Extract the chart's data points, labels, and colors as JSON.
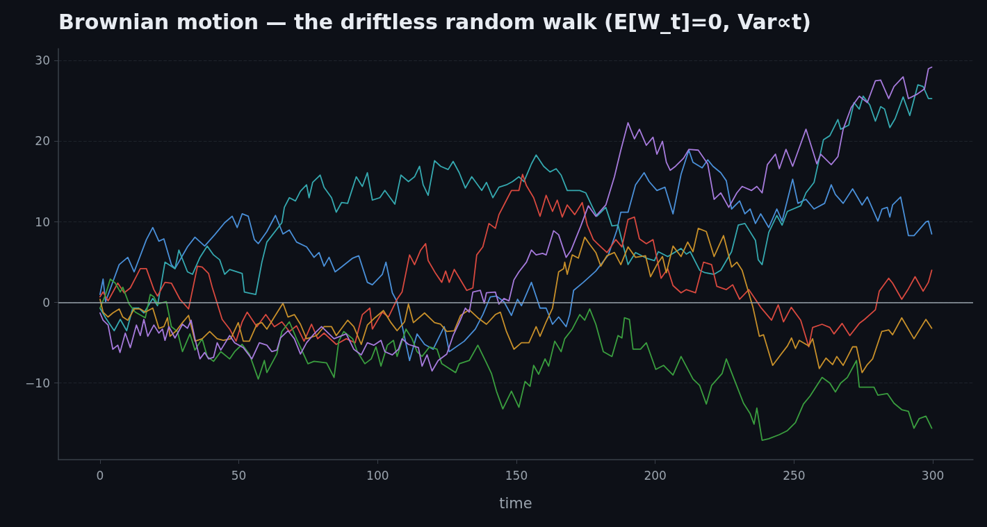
{
  "chart_data": {
    "type": "line",
    "title": "Brownian motion — the driftless random walk (E[W_t]=0, Var∝t)",
    "xlabel": "time",
    "xlim": [
      -15,
      314.5
    ],
    "xticks": [
      0,
      50,
      100,
      150,
      200,
      250,
      300
    ],
    "ylim": [
      -19.5,
      31.5
    ],
    "yticks": [
      {
        "value": -10,
        "label": "−10"
      },
      0,
      10,
      20,
      30
    ],
    "grid": "y",
    "marker": "none",
    "line_style": "solid",
    "ref_lines": [
      {
        "axis": "y",
        "value": 0,
        "label": null,
        "color": "#9aa3ad",
        "line_style": "solid"
      }
    ],
    "series": [
      {
        "color": "#4a90d9",
        "x": [
          0,
          1.1,
          2,
          6.9,
          10,
          12.3,
          16.7,
          19,
          21.2,
          23,
          25.7,
          27,
          31.5,
          34.2,
          37.7,
          41.3,
          44.9,
          47.6,
          49.4,
          51.2,
          53.4,
          55.6,
          57,
          60.1,
          63.2,
          65.9,
          68.2,
          70.8,
          74.4,
          77.1,
          78.9,
          80.7,
          82.5,
          84.7,
          87,
          91,
          93.2,
          96.3,
          98.1,
          101.7,
          103,
          105.3,
          107,
          111.5,
          114.2,
          116.9,
          120,
          124,
          125.8,
          131.2,
          135.2,
          137.9,
          140.6,
          142.8,
          145.5,
          148.2,
          150.4,
          151.8,
          155.4,
          158.5,
          160.7,
          163,
          165.2,
          167.9,
          169.2,
          170.6,
          174.1,
          178.6,
          183.1,
          186.2,
          187.6,
          190.2,
          192.9,
          196,
          197.8,
          200.6,
          203.5,
          206.4,
          209.3,
          212.1,
          213.6,
          216.9,
          218.9,
          220.8,
          223.6,
          225.6,
          227.5,
          230.4,
          232.3,
          234.2,
          236.1,
          238,
          240.9,
          243.8,
          245.7,
          249.5,
          251.4,
          254.3,
          257.2,
          261,
          263.4,
          264.9,
          267.7,
          271.1,
          274.5,
          276.4,
          280.2,
          281.7,
          283.6,
          284.5,
          285.5,
          288.4,
          291.2,
          293.2,
          297.5,
          298.4,
          299.6
        ],
        "values": [
          1,
          2.9,
          0.1,
          4.7,
          5.6,
          3.8,
          7.8,
          9.3,
          7.6,
          7.9,
          4.7,
          4.2,
          6.9,
          8.1,
          7,
          8.4,
          9.9,
          10.7,
          9.3,
          11,
          10.7,
          7.8,
          7.3,
          8.8,
          10.8,
          8.5,
          9,
          7.5,
          6.9,
          5.6,
          6.2,
          4.5,
          5.6,
          3.8,
          4.4,
          5.5,
          5.8,
          2.5,
          2.2,
          3.5,
          5,
          1.2,
          0.1,
          -7.2,
          -3.9,
          -5.2,
          -5.8,
          -3,
          -6.1,
          -4.8,
          -3.3,
          -1.5,
          0.7,
          0.8,
          0.1,
          -1.6,
          0.4,
          -0.4,
          2.5,
          -0.7,
          -0.7,
          -2.7,
          -1.8,
          -3,
          -1.5,
          1.5,
          2.5,
          3.9,
          5.9,
          9,
          11.2,
          11.2,
          14.6,
          16.1,
          15,
          13.9,
          14.3,
          11,
          15.9,
          18.9,
          17.4,
          16.7,
          17.7,
          16.9,
          16.1,
          15.1,
          11.6,
          12.6,
          11,
          11.6,
          9.8,
          11,
          9.3,
          11.6,
          10.1,
          15.3,
          12.3,
          12.8,
          11.6,
          12.3,
          14.6,
          13.4,
          12.3,
          14.1,
          12.1,
          13.1,
          10.1,
          11.6,
          11.8,
          10.6,
          12.1,
          13.1,
          8.3,
          8.3,
          10,
          10.1,
          8.5
        ]
      },
      {
        "color": "#35a9b0",
        "x": [
          0,
          2,
          5.1,
          7.3,
          9.6,
          11.8,
          14,
          15.8,
          19,
          20.7,
          23.4,
          27,
          28.4,
          31.5,
          33.3,
          36,
          38.6,
          40.9,
          43.1,
          44.9,
          46.7,
          51.2,
          52,
          56.1,
          58.3,
          60.1,
          65.5,
          66.4,
          68.2,
          70.4,
          72.2,
          74.4,
          75.3,
          76.6,
          79.3,
          80.7,
          83.4,
          85.1,
          87,
          89.2,
          92.3,
          94.5,
          96.3,
          98.1,
          100.8,
          102.6,
          106.2,
          108.4,
          111.1,
          113.3,
          115.1,
          116.4,
          118.2,
          120.5,
          122.7,
          125.4,
          127.2,
          129.4,
          131.6,
          133.9,
          137.5,
          139.2,
          141.5,
          143.7,
          146.4,
          148.6,
          150.9,
          152.7,
          155.4,
          157.1,
          159.8,
          162.1,
          164.3,
          166.1,
          168.3,
          172.8,
          175,
          177.3,
          179,
          182.2,
          184.4,
          186.6,
          190.2,
          192.9,
          196.8,
          199.7,
          201.1,
          204.5,
          209.3,
          211.2,
          212.6,
          216,
          217.9,
          221.2,
          223.6,
          227.5,
          229.9,
          232.3,
          236.1,
          237.1,
          238.5,
          240.9,
          243.8,
          245.7,
          247.6,
          252.4,
          254.3,
          257.2,
          260.6,
          262.9,
          265.8,
          266.8,
          269.7,
          271.6,
          273.5,
          274.9,
          277.3,
          279.3,
          281.2,
          282.6,
          284.5,
          286.4,
          289.3,
          291.7,
          294.6,
          296.5,
          298.4,
          299.6
        ],
        "values": [
          -0.7,
          -1.9,
          -3.5,
          -2.1,
          -3.5,
          -0.7,
          -0.7,
          -1.3,
          0.5,
          -0.4,
          5,
          4.2,
          6.5,
          3.8,
          3.5,
          5.6,
          7,
          5.9,
          5.3,
          3.5,
          4.1,
          3.6,
          1.3,
          1,
          5,
          7.5,
          9.9,
          11.8,
          13,
          12.6,
          13.8,
          14.6,
          13,
          14.9,
          15.8,
          14.3,
          13,
          11.2,
          12.4,
          12.3,
          15.6,
          14.4,
          16.1,
          12.7,
          13,
          13.9,
          12.2,
          15.8,
          15,
          15.6,
          16.9,
          14.6,
          13.3,
          17.6,
          16.9,
          16.5,
          17.5,
          16.1,
          14.2,
          15.6,
          13.9,
          14.9,
          13,
          14.3,
          14.6,
          15,
          15.6,
          15,
          17.2,
          18.3,
          16.9,
          16.2,
          16.6,
          15.8,
          13.9,
          13.9,
          13.6,
          11.9,
          10.7,
          11.8,
          9.5,
          9.6,
          4.7,
          6.2,
          5.5,
          5.2,
          6.3,
          5.7,
          6.7,
          6,
          6.3,
          4,
          3.7,
          3.5,
          4,
          6.3,
          9.6,
          9.8,
          7.7,
          5.3,
          4.7,
          8.7,
          10.8,
          9.6,
          11.3,
          12,
          13.6,
          14.9,
          20.2,
          20.7,
          22.7,
          21.5,
          22,
          24.8,
          24,
          25.6,
          24.5,
          22.5,
          24.3,
          24,
          21.7,
          22.8,
          25.5,
          23.2,
          27,
          26.8,
          25.3,
          25.3
        ]
      },
      {
        "color": "#d9493f",
        "x": [
          0,
          1.1,
          2.9,
          6.4,
          8.7,
          10.9,
          12.7,
          14.5,
          16.7,
          19.4,
          20.7,
          23.4,
          25.7,
          28.8,
          31.9,
          35.1,
          36.8,
          39.1,
          40.4,
          44,
          46.7,
          49,
          51.2,
          53,
          56.5,
          59.7,
          62.8,
          65.5,
          68.2,
          70.8,
          73.5,
          76.2,
          78.4,
          80.7,
          85.1,
          88.7,
          91.9,
          94.5,
          97.2,
          98.1,
          101.7,
          103.9,
          107,
          108.8,
          111.5,
          113.3,
          115.5,
          117.3,
          118.2,
          120.9,
          123.1,
          124.5,
          125.8,
          127.6,
          132.1,
          134.3,
          135.7,
          137.9,
          140.1,
          142.4,
          143.7,
          146.4,
          148.2,
          150.9,
          152.2,
          153.6,
          156.2,
          158.5,
          160.7,
          163,
          164.7,
          166.5,
          168.3,
          171,
          173.7,
          175.5,
          177.7,
          179.5,
          182.6,
          185.8,
          188,
          190.2,
          192.5,
          194.3,
          196.8,
          199.2,
          202.1,
          204.5,
          206.4,
          209.3,
          211.2,
          214.5,
          217.4,
          220.3,
          222.2,
          225.6,
          227.9,
          230.4,
          233.7,
          238,
          241.9,
          244.3,
          246.2,
          249,
          252.4,
          255.3,
          256.7,
          260.1,
          262.9,
          264.4,
          267.3,
          270.1,
          273.5,
          275.4,
          279.3,
          280.7,
          284.1,
          285.5,
          288.8,
          291.2,
          293.6,
          296.5,
          298.4,
          299.6
        ],
        "values": [
          0.7,
          1.3,
          0.2,
          2.4,
          1.2,
          1.8,
          3,
          4.2,
          4.2,
          1.6,
          0.8,
          2.5,
          2.4,
          0.4,
          -0.8,
          4.5,
          4.4,
          3.6,
          1.9,
          -2.1,
          -3.3,
          -4.8,
          -2.4,
          -1.2,
          -3,
          -1.5,
          -3,
          -2.4,
          -3.6,
          -2.9,
          -4.8,
          -2.7,
          -4.5,
          -3.8,
          -5.2,
          -4.5,
          -5,
          -1.5,
          -0.7,
          -3.3,
          -1.2,
          -1.8,
          0.4,
          1.3,
          5.9,
          4.7,
          6.5,
          7.3,
          5.2,
          3.6,
          2.5,
          3.9,
          2.5,
          4.1,
          1.5,
          1.8,
          5.9,
          6.9,
          9.8,
          9.2,
          10.9,
          12.7,
          13.9,
          13.9,
          15.9,
          14.5,
          13,
          10.7,
          13.3,
          11.3,
          12.7,
          10.6,
          12.1,
          10.9,
          12.4,
          9.6,
          7.8,
          7.2,
          6.2,
          7.8,
          6.9,
          10.3,
          10.6,
          7.9,
          7.3,
          7.8,
          3,
          4.2,
          2.1,
          1.2,
          1.6,
          1.2,
          5,
          4.7,
          2,
          1.6,
          2.2,
          0.4,
          1.6,
          -0.6,
          -2.2,
          -0.3,
          -2.4,
          -0.6,
          -2.2,
          -5.5,
          -3.1,
          -2.7,
          -3.1,
          -3.9,
          -2.6,
          -4.1,
          -2.6,
          -2.1,
          -0.9,
          1.4,
          3,
          2.4,
          0.4,
          1.7,
          3.2,
          1.4,
          2.5,
          4
        ]
      },
      {
        "color": "#3a9e3f",
        "x": [
          0,
          2,
          3.7,
          5.5,
          7.3,
          8.2,
          10.5,
          12.7,
          16.3,
          18.1,
          19.4,
          20.7,
          23.9,
          25.7,
          27.9,
          29.7,
          32.4,
          34.2,
          36.8,
          38.6,
          40.9,
          43.5,
          46.7,
          48.5,
          51.2,
          53.8,
          57,
          59.2,
          60.1,
          63.7,
          65.5,
          68.2,
          70.8,
          74.9,
          77.1,
          81.6,
          84.3,
          86,
          87.8,
          91,
          92.7,
          95.4,
          97.7,
          99.4,
          101.2,
          103.5,
          105.7,
          107,
          110.2,
          112.4,
          114.2,
          116,
          118.7,
          121.4,
          123.1,
          125.8,
          128.1,
          129.4,
          133,
          136.1,
          139.2,
          141,
          142.8,
          145.1,
          148.2,
          150.9,
          153.1,
          154.9,
          156.2,
          158,
          160.3,
          161.6,
          163.8,
          166.1,
          167.4,
          170.1,
          172.8,
          174.6,
          176.4,
          178.6,
          181.3,
          184.4,
          186.6,
          188,
          188.9,
          190.7,
          192,
          194.7,
          196.8,
          200.2,
          203,
          206.4,
          209.3,
          213.6,
          216,
          218.4,
          220.3,
          224.1,
          225.6,
          228.4,
          231.8,
          234.2,
          235.6,
          236.6,
          238.5,
          240.9,
          244.7,
          247.6,
          250.5,
          253.4,
          255.8,
          260.1,
          262.9,
          264.9,
          266.8,
          269.2,
          272.5,
          273.5,
          275.9,
          278.8,
          280.2,
          283.6,
          286,
          288.8,
          291.2,
          293.2,
          295.1,
          297.5,
          299.6
        ],
        "values": [
          -0.7,
          1,
          2.9,
          2.4,
          1.3,
          1.9,
          -0.2,
          -1.2,
          -1.9,
          1,
          0.7,
          -0.2,
          0.1,
          -3,
          -3.6,
          -6.1,
          -3.9,
          -5.9,
          -4.5,
          -6.7,
          -7.3,
          -6.1,
          -7,
          -6.1,
          -5.2,
          -6.4,
          -9.5,
          -7.2,
          -8.7,
          -6.4,
          -3.6,
          -2.4,
          -4.5,
          -7.6,
          -7.3,
          -7.5,
          -9.3,
          -4.8,
          -3.6,
          -4.5,
          -6.1,
          -7.6,
          -7,
          -5.5,
          -7.9,
          -5.3,
          -4.7,
          -6.7,
          -3.3,
          -4.5,
          -6.1,
          -6.7,
          -5.5,
          -5.8,
          -7.6,
          -8.2,
          -8.7,
          -7.6,
          -7.2,
          -5.3,
          -7.5,
          -8.8,
          -11,
          -13.2,
          -11,
          -13,
          -9.8,
          -10.4,
          -7.8,
          -8.9,
          -7,
          -7.9,
          -4.8,
          -6.1,
          -4.5,
          -3.3,
          -1.5,
          -2.2,
          -0.8,
          -2.7,
          -6.1,
          -6.7,
          -4.1,
          -4.4,
          -1.9,
          -2.1,
          -5.8,
          -5.8,
          -5,
          -8.3,
          -7.8,
          -9,
          -6.7,
          -9.5,
          -10.3,
          -12.6,
          -10.3,
          -8.8,
          -7,
          -9.5,
          -12.5,
          -13.8,
          -15.1,
          -13.1,
          -17.1,
          -16.9,
          -16.4,
          -15.9,
          -14.9,
          -12.6,
          -11.6,
          -9.3,
          -10,
          -11.1,
          -10,
          -9.3,
          -7.2,
          -10.5,
          -10.5,
          -10.5,
          -11.5,
          -11.3,
          -12.5,
          -13.3,
          -13.5,
          -15.6,
          -14.4,
          -14.1,
          -15.6
        ]
      },
      {
        "color": "#c8902a",
        "x": [
          0,
          1.1,
          2.9,
          4.6,
          6.9,
          8.2,
          10,
          12.3,
          14.5,
          16.3,
          19,
          21.2,
          23,
          24.3,
          25.2,
          27.5,
          29.7,
          31.9,
          34.2,
          36.8,
          39.5,
          42.2,
          44.4,
          47.1,
          49.8,
          51.6,
          53.8,
          56.5,
          58.3,
          60.1,
          62.8,
          65.9,
          67.7,
          70,
          72.2,
          74.4,
          78,
          80.7,
          83.4,
          85.1,
          89.2,
          91.4,
          94.1,
          96.3,
          99,
          102.1,
          104.8,
          107,
          109.7,
          111.1,
          112.9,
          116.9,
          120.5,
          122.7,
          124.9,
          127.6,
          129.9,
          133,
          136.1,
          139.2,
          142.4,
          144.2,
          146.4,
          149.1,
          151.8,
          154.5,
          157.1,
          158.5,
          160.7,
          163,
          165.2,
          167,
          167.4,
          168.3,
          170.1,
          172.3,
          174.6,
          176.4,
          178.6,
          180.4,
          182.6,
          185.3,
          187.6,
          190.2,
          192.9,
          196.5,
          198.3,
          200.6,
          202.6,
          204,
          206.4,
          209.3,
          211.7,
          213.6,
          215.5,
          218.4,
          221.2,
          224.6,
          227.5,
          229.4,
          231.3,
          235.2,
          237.5,
          239,
          242.3,
          244.7,
          247.6,
          249.1,
          250.5,
          251.9,
          255.3,
          256.7,
          259.1,
          261.5,
          263.9,
          265.4,
          267.7,
          271.1,
          272.5,
          274.5,
          276.4,
          278.3,
          281.6,
          284.1,
          285.5,
          288.8,
          293.2,
          297.5,
          299.6
        ],
        "values": [
          0.4,
          -1.2,
          -1.8,
          -1.3,
          -0.8,
          -1.8,
          -2.2,
          -0.8,
          -0.8,
          -1.2,
          -0.7,
          -3.2,
          -3,
          -1.9,
          -4.2,
          -3.5,
          -2.5,
          -1.6,
          -4.8,
          -4.5,
          -3.6,
          -4.5,
          -4.7,
          -4.5,
          -2.5,
          -4.8,
          -4.8,
          -2.7,
          -2.5,
          -3.3,
          -1.8,
          -0.1,
          -1.8,
          -1.5,
          -2.7,
          -4.5,
          -4.1,
          -3,
          -3,
          -4.1,
          -2.2,
          -3,
          -5.2,
          -2.8,
          -1.9,
          -1,
          -2.5,
          -3.5,
          -2.4,
          -0.2,
          -2.5,
          -1.3,
          -2.5,
          -2.7,
          -3.6,
          -3.5,
          -1.6,
          -0.9,
          -1.9,
          -2.7,
          -1.5,
          -1.2,
          -3.6,
          -5.8,
          -5,
          -5,
          -3,
          -4.2,
          -2.4,
          -0.7,
          3.8,
          4.2,
          5,
          3.5,
          5.9,
          5.5,
          8.1,
          7.2,
          6.2,
          4.5,
          5.8,
          6.2,
          4.7,
          6.9,
          5.6,
          5.8,
          3.2,
          4.7,
          5.7,
          3.7,
          7,
          5.7,
          7.5,
          6.3,
          9.2,
          8.8,
          5.7,
          8.3,
          4.4,
          5,
          4,
          -0.6,
          -4.2,
          -4,
          -7.8,
          -6.7,
          -5.4,
          -4.4,
          -5.7,
          -4.7,
          -5.4,
          -4.5,
          -8.2,
          -6.9,
          -7.7,
          -6.7,
          -7.8,
          -5.5,
          -5.5,
          -8.7,
          -7.7,
          -7,
          -3.6,
          -3.4,
          -4,
          -1.9,
          -4.5,
          -2.1,
          -3.2
        ]
      },
      {
        "color": "#a77bdd",
        "x": [
          0,
          1.1,
          2.9,
          4.6,
          6.4,
          7.2,
          9.1,
          10.9,
          13.1,
          14.5,
          15.8,
          17.2,
          19.4,
          21.2,
          22.5,
          23.4,
          24.8,
          27,
          29.7,
          31.5,
          32.8,
          34.2,
          36,
          37.7,
          39.1,
          40.9,
          42.2,
          43.5,
          46.7,
          48.5,
          51.6,
          54.7,
          57.4,
          60.1,
          61.9,
          63.7,
          65,
          67.7,
          70,
          72.2,
          74.4,
          77.1,
          79.8,
          82.5,
          84.3,
          88.7,
          91.4,
          94.1,
          96.3,
          98.6,
          101.2,
          102.6,
          105.3,
          107.5,
          108.8,
          111.1,
          114.7,
          116,
          117.8,
          119.6,
          121.8,
          124.9,
          127.2,
          129.4,
          131.6,
          133,
          134.3,
          137,
          138.4,
          139.2,
          142.4,
          143.7,
          145.5,
          147.3,
          149.1,
          150.9,
          153.6,
          155.4,
          157.1,
          159.4,
          160.7,
          163.4,
          165.2,
          167.9,
          169.7,
          173.2,
          175.9,
          178.6,
          182.2,
          185.3,
          187.6,
          190.2,
          192.5,
          194.3,
          196.8,
          199.2,
          200.6,
          202.6,
          204,
          205.4,
          207.3,
          210.2,
          212.1,
          215.5,
          218.9,
          221.2,
          223.6,
          226.5,
          229.4,
          231.3,
          234.7,
          236.6,
          238.5,
          240.4,
          243.3,
          244.7,
          247.1,
          249.5,
          251.9,
          254.3,
          258.2,
          259.6,
          263.4,
          265.8,
          267.7,
          270.6,
          273.5,
          276.4,
          279.3,
          281.2,
          284.1,
          286,
          289.3,
          291.2,
          294.1,
          297,
          298.4,
          299.6
        ],
        "values": [
          -1.3,
          -2.2,
          -2.8,
          -5.8,
          -5.3,
          -6.2,
          -3.8,
          -5.6,
          -2.8,
          -4.1,
          -2.1,
          -4.2,
          -2.8,
          -3.8,
          -3.3,
          -4.7,
          -3,
          -4.4,
          -2.7,
          -3.2,
          -2.2,
          -4.5,
          -7,
          -6.2,
          -7,
          -6.8,
          -5,
          -5.9,
          -4.1,
          -5,
          -5.6,
          -7,
          -5,
          -5.3,
          -6.1,
          -5.9,
          -4.4,
          -3.5,
          -4.5,
          -6.4,
          -5,
          -3.9,
          -3,
          -3.9,
          -4.5,
          -3.9,
          -5.8,
          -6.5,
          -5,
          -5.3,
          -4.7,
          -6.1,
          -6.5,
          -5.8,
          -4.5,
          -5.2,
          -5.6,
          -7.9,
          -6.5,
          -8.5,
          -7.2,
          -6.4,
          -4.1,
          -2.5,
          -0.7,
          -1.2,
          1.3,
          1.5,
          -0.1,
          1.2,
          1.3,
          -0.2,
          0.5,
          0.2,
          2.8,
          3.8,
          5,
          6.5,
          5.9,
          6.1,
          5.9,
          8.9,
          8.4,
          5.6,
          6.5,
          9.5,
          12,
          10.7,
          12.1,
          15.6,
          18.9,
          22.3,
          20.3,
          21.5,
          19.5,
          20.5,
          18.4,
          20,
          17.4,
          16.4,
          16.9,
          17.9,
          19,
          18.9,
          17.2,
          12.8,
          13.6,
          11.8,
          13.6,
          14.4,
          13.9,
          14.4,
          13.6,
          17.1,
          18.4,
          16.6,
          19,
          16.9,
          19.2,
          21.5,
          17.2,
          18.4,
          17.1,
          18.1,
          21.5,
          24.2,
          25.6,
          24.8,
          27.5,
          27.6,
          25.3,
          26.8,
          28,
          25.3,
          25.8,
          26.5,
          29,
          29.2
        ]
      }
    ]
  }
}
